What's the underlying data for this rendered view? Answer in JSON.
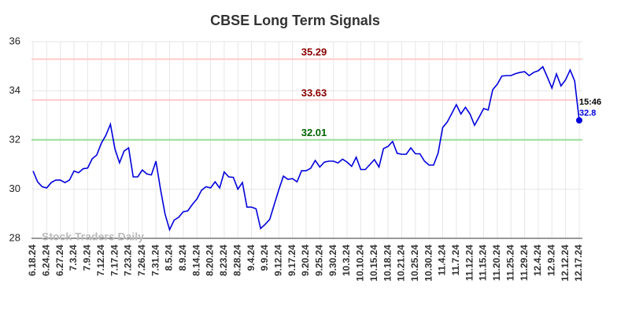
{
  "chart_data": {
    "type": "line",
    "title": "CBSE Long Term Signals",
    "watermark": "Stock Traders Daily",
    "annotation": "15:46",
    "categories": [
      "6.18.24",
      null,
      null,
      "6.24.24",
      null,
      null,
      "6.27.24",
      null,
      null,
      "7.3.24",
      null,
      null,
      "7.9.24",
      null,
      null,
      "7.12.24",
      null,
      null,
      "7.17.24",
      null,
      null,
      "7.23.24",
      null,
      null,
      "7.26.24",
      null,
      null,
      "7.31.24",
      null,
      null,
      "8.5.24",
      null,
      null,
      "8.9.24",
      null,
      null,
      "8.14.24",
      null,
      null,
      "8.20.24",
      null,
      null,
      "8.23.24",
      null,
      null,
      "8.28.24",
      null,
      null,
      "9.4.24",
      null,
      null,
      "9.9.24",
      null,
      null,
      "9.12.24",
      null,
      null,
      "9.17.24",
      null,
      null,
      "9.20.24",
      null,
      null,
      "9.25.24",
      null,
      null,
      "9.30.24",
      null,
      null,
      "10.3.24",
      null,
      null,
      "10.10.24",
      null,
      null,
      "10.15.24",
      null,
      null,
      "10.18.24",
      null,
      null,
      "10.21.24",
      null,
      null,
      "10.25.24",
      null,
      null,
      "10.30.24",
      null,
      null,
      "11.4.24",
      null,
      null,
      "11.7.24",
      null,
      null,
      "11.12.24",
      null,
      null,
      "11.15.24",
      null,
      null,
      "11.20.24",
      null,
      null,
      "11.25.24",
      null,
      null,
      "11.29.24",
      null,
      null,
      "12.4.24",
      null,
      null,
      "12.9.24",
      null,
      null,
      "12.12.24",
      null,
      null,
      "12.17.24"
    ],
    "series": [
      {
        "color": "#0000dd",
        "values": [
          30.74,
          30.3,
          30.1,
          30.05,
          30.27,
          30.37,
          30.37,
          30.27,
          30.37,
          30.74,
          30.67,
          30.83,
          30.86,
          31.24,
          31.39,
          31.87,
          32.19,
          32.64,
          31.63,
          31.07,
          31.55,
          31.68,
          30.5,
          30.5,
          30.78,
          30.62,
          30.58,
          31.14,
          30.0,
          28.99,
          28.35,
          28.74,
          28.86,
          29.08,
          29.12,
          29.38,
          29.6,
          29.95,
          30.1,
          30.05,
          30.3,
          30.05,
          30.7,
          30.5,
          30.48,
          30.0,
          30.27,
          29.27,
          29.27,
          29.2,
          28.4,
          28.57,
          28.77,
          29.38,
          29.98,
          30.53,
          30.4,
          30.43,
          30.3,
          30.75,
          30.75,
          30.85,
          31.17,
          30.9,
          31.1,
          31.14,
          31.14,
          31.07,
          31.22,
          31.1,
          30.93,
          31.3,
          30.8,
          30.8,
          31.0,
          31.2,
          30.9,
          31.65,
          31.74,
          31.94,
          31.46,
          31.42,
          31.42,
          31.68,
          31.44,
          31.44,
          31.14,
          30.98,
          30.98,
          31.47,
          32.51,
          32.73,
          33.08,
          33.44,
          33.06,
          33.33,
          33.06,
          32.6,
          32.93,
          33.28,
          33.22,
          34.05,
          34.27,
          34.6,
          34.62,
          34.62,
          34.7,
          34.75,
          34.78,
          34.62,
          34.75,
          34.82,
          34.98,
          34.56,
          34.11,
          34.69,
          34.2,
          34.45,
          34.85,
          34.4,
          32.8
        ]
      }
    ],
    "hlines": [
      {
        "value": 35.29,
        "color": "#ffcccc",
        "label_color": "#8b0000"
      },
      {
        "value": 33.63,
        "color": "#ffcccc",
        "label_color": "#8b0000"
      },
      {
        "value": 32.01,
        "color": "#99dd99",
        "label_color": "#006400"
      }
    ],
    "ylim": [
      28,
      36
    ],
    "yticks": [
      28,
      30,
      32,
      34,
      36
    ],
    "grid": true
  }
}
